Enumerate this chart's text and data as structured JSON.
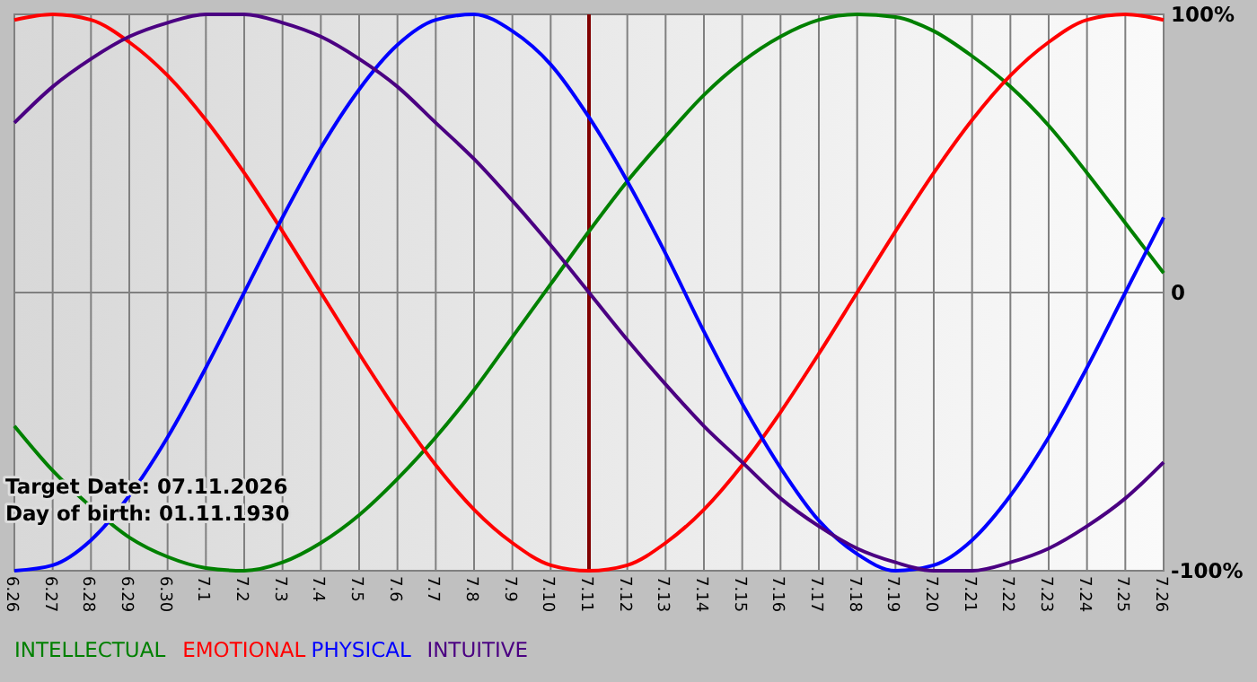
{
  "chart_data": {
    "type": "line",
    "categories": [
      "6.26",
      "6.27",
      "6.28",
      "6.29",
      "6.30",
      "7.1",
      "7.2",
      "7.3",
      "7.4",
      "7.5",
      "7.6",
      "7.7",
      "7.8",
      "7.9",
      "7.10",
      "7.11",
      "7.12",
      "7.13",
      "7.14",
      "7.15",
      "7.16",
      "7.17",
      "7.18",
      "7.19",
      "7.20",
      "7.21",
      "7.22",
      "7.23",
      "7.24",
      "7.25",
      "7.26"
    ],
    "series": [
      {
        "name": "INTELLECTUAL",
        "color": "#008000",
        "values": [
          -48,
          -64,
          -77,
          -88,
          -95,
          -99,
          -100,
          -97,
          -90,
          -80,
          -67,
          -52,
          -35,
          -16,
          3,
          22,
          40,
          56,
          71,
          83,
          92,
          98,
          100,
          99,
          94,
          85,
          74,
          60,
          43,
          25,
          7
        ]
      },
      {
        "name": "EMOTIONAL",
        "color": "#ff0000",
        "values": [
          98,
          100,
          98,
          90,
          78,
          62,
          43,
          22,
          0,
          -22,
          -43,
          -62,
          -78,
          -90,
          -98,
          -100,
          -98,
          -90,
          -78,
          -62,
          -43,
          -22,
          0,
          22,
          43,
          62,
          78,
          90,
          98,
          100,
          98
        ]
      },
      {
        "name": "PHYSICAL",
        "color": "#0000ff",
        "values": [
          -100,
          -98,
          -89,
          -73,
          -52,
          -27,
          0,
          27,
          52,
          73,
          89,
          98,
          100,
          94,
          82,
          63,
          40,
          14,
          -14,
          -40,
          -63,
          -82,
          -94,
          -100,
          -98,
          -89,
          -73,
          -52,
          -27,
          0,
          27
        ]
      },
      {
        "name": "INTUITIVE",
        "color": "#4b0082",
        "values": [
          61,
          74,
          84,
          92,
          97,
          100,
          100,
          97,
          92,
          84,
          74,
          61,
          48,
          33,
          17,
          0,
          -17,
          -33,
          -48,
          -61,
          -74,
          -84,
          -92,
          -97,
          -100,
          -100,
          -97,
          -92,
          -84,
          -74,
          -61
        ]
      }
    ],
    "ylim": [
      -100,
      100
    ],
    "yticks": [
      {
        "value": 100,
        "label": "100%"
      },
      0,
      {
        "value": -100,
        "label": "-100%"
      }
    ],
    "grid": true,
    "legend": "bottom left",
    "ref_lines": [
      {
        "axis": "x",
        "value": "7.11",
        "color": "#800000"
      }
    ],
    "annotations": [
      "Target Date: 07.11.2026",
      "Day of birth: 01.11.1930"
    ]
  }
}
